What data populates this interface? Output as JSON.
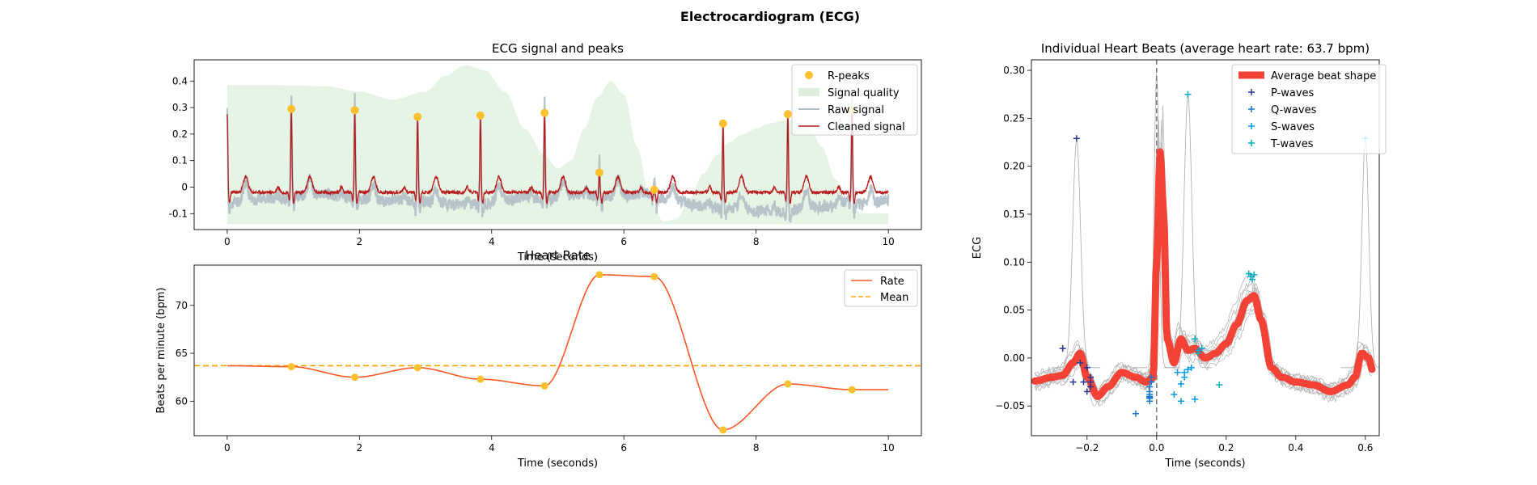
{
  "figure": {
    "title": "Electrocardiogram (ECG)"
  },
  "colors": {
    "rpeak": "#FFC02E",
    "quality_fill": "#DCF0DC",
    "raw": "#B0BEC5",
    "cleaned": "#B71C1C",
    "rate": "#FF5722",
    "mean": "#FFA000",
    "avg_beat": "#F44336",
    "p_wave": "#283593",
    "q_wave": "#1976D2",
    "s_wave": "#039BE5",
    "t_wave": "#00ACC1",
    "beats": "#AAAAAA"
  },
  "chart_data": [
    {
      "id": "ecg",
      "type": "line",
      "title": "ECG signal and peaks",
      "xlabel": "Time (seconds)",
      "ylabel": "",
      "xlim": [
        -0.5,
        10.5
      ],
      "ylim": [
        -0.16,
        0.48
      ],
      "xticks": [
        0,
        2,
        4,
        6,
        8,
        10
      ],
      "yticks": [
        -0.1,
        0.0,
        0.1,
        0.2,
        0.3,
        0.4
      ],
      "legend": [
        "R-peaks",
        "Signal quality",
        "Raw signal",
        "Cleaned signal"
      ],
      "legend_position": "top-right",
      "r_peaks": {
        "x": [
          0.97,
          1.93,
          2.88,
          3.83,
          4.8,
          5.63,
          6.46,
          7.5,
          8.48,
          9.45
        ],
        "y": [
          0.295,
          0.29,
          0.265,
          0.27,
          0.28,
          0.055,
          -0.01,
          0.24,
          0.275,
          0.29
        ]
      },
      "signal_quality": {
        "x": [
          0,
          0.5,
          1,
          1.5,
          2,
          2.5,
          3,
          3.3,
          3.6,
          3.9,
          4.2,
          4.5,
          4.8,
          5.0,
          5.2,
          5.4,
          5.6,
          5.8,
          6.0,
          6.2,
          6.4,
          6.6,
          6.8,
          7.0,
          7.2,
          7.4,
          7.6,
          7.8,
          8.0,
          8.2,
          8.4,
          8.6,
          8.8,
          9.0,
          9.2,
          9.4,
          9.6,
          9.8,
          10.0
        ],
        "y": [
          0.385,
          0.385,
          0.384,
          0.38,
          0.36,
          0.33,
          0.36,
          0.42,
          0.46,
          0.44,
          0.36,
          0.22,
          0.12,
          0.07,
          0.1,
          0.22,
          0.34,
          0.4,
          0.35,
          0.15,
          -0.05,
          -0.13,
          -0.12,
          -0.04,
          0.05,
          0.12,
          0.17,
          0.2,
          0.22,
          0.24,
          0.25,
          0.25,
          0.23,
          0.15,
          0.03,
          -0.06,
          -0.1,
          -0.1,
          -0.1
        ],
        "baseline": -0.14
      },
      "series": [
        {
          "name": "Raw signal",
          "baseline": -0.06,
          "noise": 0.022
        },
        {
          "name": "Cleaned signal",
          "baseline": -0.02,
          "noise": 0.006
        }
      ]
    },
    {
      "id": "rate",
      "type": "line",
      "title": "Heart Rate",
      "xlabel": "Time (seconds)",
      "ylabel": "Beats per minute (bpm)",
      "xlim": [
        -0.5,
        10.5
      ],
      "ylim": [
        56.4,
        74.2
      ],
      "xticks": [
        0,
        2,
        4,
        6,
        8,
        10
      ],
      "yticks": [
        60,
        65,
        70
      ],
      "legend": [
        "Rate",
        "Mean"
      ],
      "legend_position": "top-right",
      "mean": 63.7,
      "points": {
        "x": [
          0,
          0.97,
          1.93,
          2.88,
          3.83,
          4.8,
          5.63,
          6.46,
          7.5,
          8.48,
          9.45,
          10.0
        ],
        "y": [
          63.7,
          63.6,
          62.5,
          63.5,
          62.3,
          61.6,
          73.2,
          73.0,
          57.0,
          61.8,
          61.2,
          61.2
        ]
      },
      "markers": {
        "x": [
          0.97,
          1.93,
          2.88,
          3.83,
          4.8,
          5.63,
          6.46,
          7.5,
          8.48,
          9.45
        ],
        "y": [
          63.6,
          62.5,
          63.5,
          62.3,
          61.6,
          73.2,
          73.0,
          57.0,
          61.8,
          61.2
        ]
      }
    },
    {
      "id": "beats",
      "type": "line",
      "title": "Individual Heart Beats (average heart rate: 63.7 bpm)",
      "xlabel": "Time (seconds)",
      "ylabel": "ECG",
      "xlim": [
        -0.36,
        0.64
      ],
      "ylim": [
        -0.081,
        0.311
      ],
      "xticks": [
        -0.2,
        0.0,
        0.2,
        0.4,
        0.6
      ],
      "xtick_labels": [
        "−0.2",
        "0.0",
        "0.2",
        "0.4",
        "0.6"
      ],
      "yticks": [
        -0.05,
        0.0,
        0.05,
        0.1,
        0.15,
        0.2,
        0.25,
        0.3
      ],
      "ytick_labels": [
        "−0.05",
        "0.00",
        "0.05",
        "0.10",
        "0.15",
        "0.20",
        "0.25",
        "0.30"
      ],
      "legend": [
        "Average beat shape",
        "P-waves",
        "Q-waves",
        "S-waves",
        "T-waves"
      ],
      "legend_position": "top-right",
      "average_beat": {
        "x": [
          -0.35,
          -0.3,
          -0.27,
          -0.24,
          -0.22,
          -0.2,
          -0.17,
          -0.14,
          -0.1,
          -0.06,
          -0.03,
          -0.01,
          0.0,
          0.01,
          0.02,
          0.03,
          0.05,
          0.07,
          0.09,
          0.11,
          0.14,
          0.17,
          0.2,
          0.23,
          0.26,
          0.28,
          0.3,
          0.33,
          0.36,
          0.4,
          0.45,
          0.5,
          0.55,
          0.57,
          0.59,
          0.61,
          0.62
        ],
        "y": [
          -0.024,
          -0.02,
          -0.018,
          -0.005,
          0.005,
          -0.02,
          -0.04,
          -0.03,
          -0.015,
          -0.02,
          -0.025,
          -0.02,
          0.1,
          0.215,
          0.15,
          0.02,
          -0.005,
          0.02,
          0.008,
          0.01,
          0.0,
          0.005,
          0.015,
          0.035,
          0.06,
          0.065,
          0.04,
          -0.01,
          -0.02,
          -0.025,
          -0.028,
          -0.035,
          -0.028,
          -0.02,
          0.005,
          0.0,
          -0.012
        ]
      },
      "p_waves": {
        "x": [
          -0.27,
          -0.24,
          -0.22,
          -0.2,
          -0.19,
          -0.19,
          -0.21,
          -0.23,
          -0.2,
          -0.19
        ],
        "y": [
          0.01,
          -0.025,
          -0.005,
          -0.01,
          -0.02,
          -0.025,
          -0.025,
          0.229,
          -0.035,
          -0.03
        ]
      },
      "q_waves": {
        "x": [
          -0.06,
          -0.02,
          -0.02,
          -0.02,
          -0.015,
          -0.02,
          -0.02,
          -0.02,
          -0.02,
          -0.015
        ],
        "y": [
          -0.058,
          -0.04,
          -0.042,
          -0.035,
          -0.02,
          -0.03,
          -0.045,
          -0.038,
          -0.041,
          -0.025
        ]
      },
      "s_waves": {
        "x": [
          0.05,
          0.06,
          0.07,
          0.08,
          0.09,
          0.1,
          0.11,
          0.12,
          0.08,
          0.07
        ],
        "y": [
          -0.038,
          -0.015,
          -0.027,
          -0.015,
          -0.012,
          -0.01,
          -0.043,
          0.008,
          -0.02,
          -0.045
        ]
      },
      "t_waves": {
        "x": [
          0.11,
          0.18,
          0.27,
          0.275,
          0.09,
          0.28,
          0.6,
          0.13,
          0.12,
          0.265
        ],
        "y": [
          0.02,
          -0.028,
          0.085,
          0.082,
          0.275,
          0.087,
          0.229,
          0.01,
          0.005,
          0.088
        ]
      }
    }
  ]
}
